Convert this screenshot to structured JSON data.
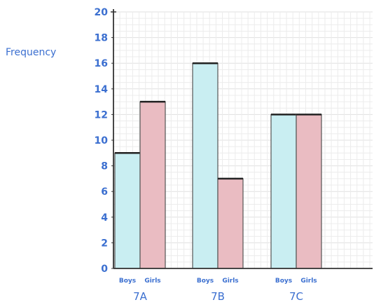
{
  "chart_data": {
    "type": "bar",
    "title": "",
    "xlabel": "",
    "ylabel": "Frequency",
    "ylim": [
      0,
      20
    ],
    "yticks": [
      0,
      2,
      4,
      6,
      8,
      10,
      12,
      14,
      16,
      18,
      20
    ],
    "grid": true,
    "categories": [
      "7A",
      "7B",
      "7C"
    ],
    "series": [
      {
        "name": "Boys",
        "values": [
          9,
          16,
          12
        ],
        "color": "#c9eef2"
      },
      {
        "name": "Girls",
        "values": [
          13,
          7,
          12
        ],
        "color": "#eabcc2"
      }
    ],
    "sublabels": [
      "Boys",
      "Girls"
    ],
    "colors": {
      "text": "#3b6fd0",
      "grid": "#e6e6e6",
      "axis": "#333333",
      "bar_top": "#222222"
    }
  }
}
